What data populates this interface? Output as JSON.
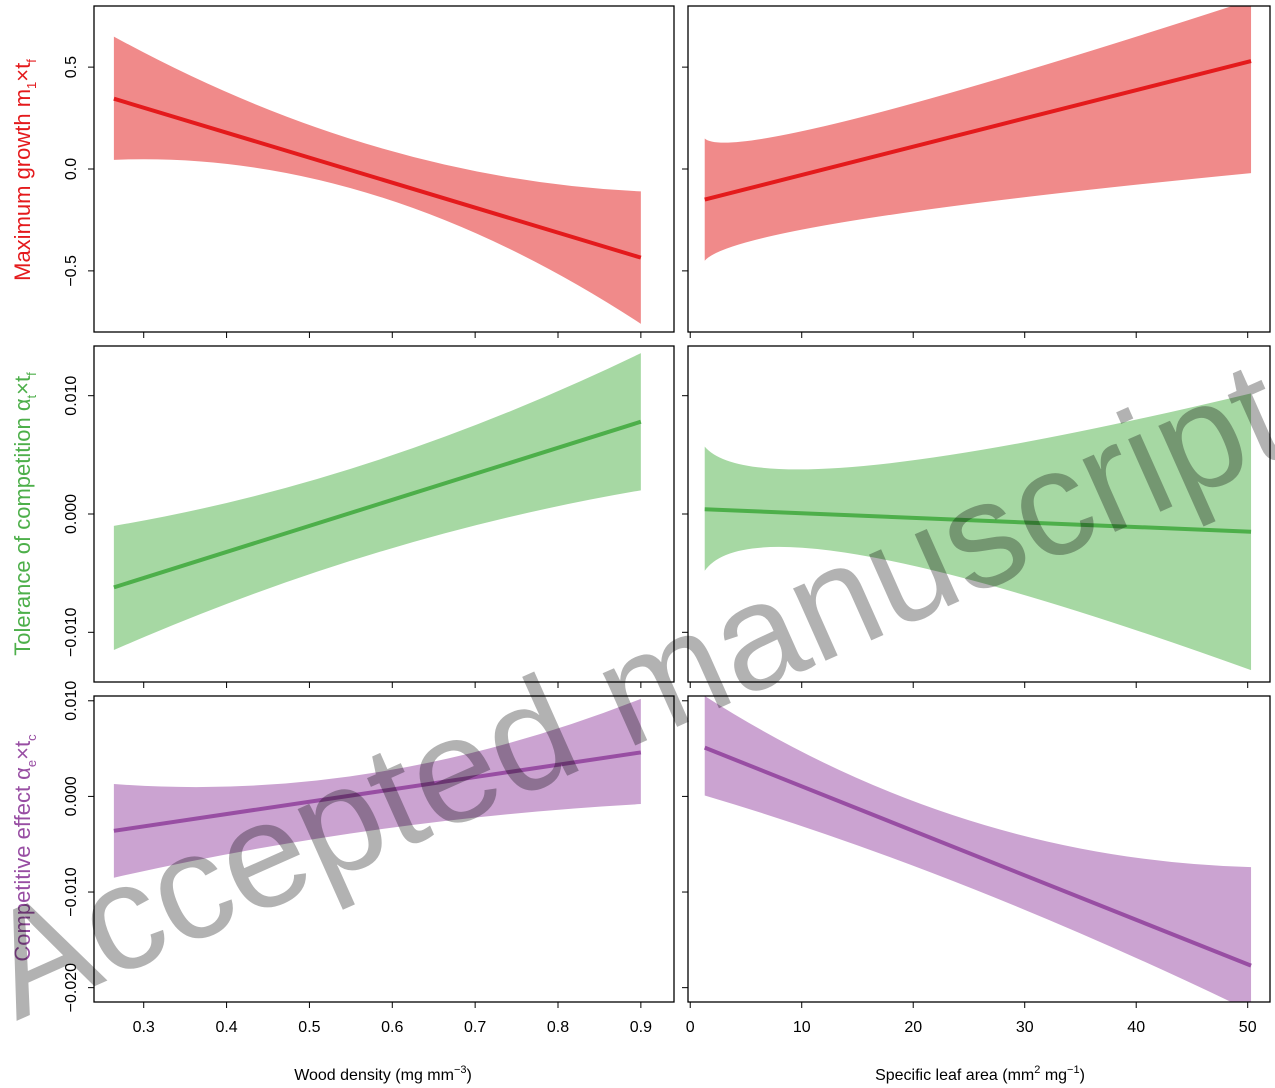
{
  "watermark": "Accepted manuscript",
  "colors": {
    "growth_line": "#E41A1C",
    "growth_band": "#F08A8A",
    "tolerance_line": "#4DAF4A",
    "tolerance_band": "#A6D8A3",
    "effect_line": "#984EA3",
    "effect_band": "#CBA3D1"
  },
  "rows": [
    {
      "title_main": "Maximum growth m",
      "title_sub1": "1",
      "title_mid": "×t",
      "title_sub2": "f"
    },
    {
      "title_main": "Tolerance of competition α",
      "title_sub1": "t",
      "title_mid": "×t",
      "title_sub2": "f"
    },
    {
      "title_main": "Competitive effect α",
      "title_sub1": "e",
      "title_mid": "×t",
      "title_sub2": "c"
    }
  ],
  "columns": [
    {
      "xlabel_pre": "Wood density (mg mm",
      "xlabel_sup": "−3",
      "xlabel_post": ")"
    },
    {
      "xlabel_pre": "Specific leaf area (mm",
      "xlabel_sup": "2",
      "xlabel_mid": " mg",
      "xlabel_sup2": "−1",
      "xlabel_post": ")"
    }
  ],
  "chart_data": [
    {
      "type": "line",
      "row": 0,
      "col": 0,
      "xlim": [
        0.24,
        0.94
      ],
      "ylim": [
        -0.8,
        0.8
      ],
      "xticks": [
        "0.3",
        "0.4",
        "0.5",
        "0.6",
        "0.7",
        "0.8",
        "0.9"
      ],
      "yticks": [
        "-0.5",
        "0.0",
        "0.5"
      ],
      "x": [
        0.264,
        0.9
      ],
      "y": [
        0.345,
        -0.435
      ],
      "band": {
        "x": [
          0.264,
          0.58,
          0.9
        ],
        "lower": [
          0.045,
          -0.13,
          -0.76
        ],
        "upper": [
          0.65,
          0.11,
          -0.11
        ]
      }
    },
    {
      "type": "line",
      "row": 0,
      "col": 1,
      "xlim": [
        -0.2,
        52
      ],
      "ylim": [
        -0.8,
        0.8
      ],
      "xticks": [
        "0",
        "10",
        "20",
        "30",
        "40",
        "50"
      ],
      "yticks": [
        "-0.5",
        "0.0",
        "0.5"
      ],
      "x": [
        1.3,
        50.3
      ],
      "y": [
        -0.15,
        0.53
      ],
      "band": {
        "x": [
          1.3,
          15,
          50.3
        ],
        "lower": [
          -0.45,
          -0.25,
          -0.02
        ],
        "upper": [
          0.15,
          0.25,
          0.83
        ]
      }
    },
    {
      "type": "line",
      "row": 1,
      "col": 0,
      "xlim": [
        0.24,
        0.94
      ],
      "ylim": [
        -0.0142,
        0.0142
      ],
      "xticks": [
        "0.3",
        "0.4",
        "0.5",
        "0.6",
        "0.7",
        "0.8",
        "0.9"
      ],
      "yticks": [
        "-0.010",
        "0.000",
        "0.010"
      ],
      "x": [
        0.264,
        0.9
      ],
      "y": [
        -0.0062,
        0.0078
      ],
      "band": {
        "x": [
          0.264,
          0.58,
          0.9
        ],
        "lower": [
          -0.0115,
          -0.0033,
          0.002
        ],
        "upper": [
          -0.001,
          0.0045,
          0.0136
        ]
      }
    },
    {
      "type": "line",
      "row": 1,
      "col": 1,
      "xlim": [
        -0.2,
        52
      ],
      "ylim": [
        -0.0142,
        0.0142
      ],
      "xticks": [
        "0",
        "10",
        "20",
        "30",
        "40",
        "50"
      ],
      "yticks": [
        "-0.010",
        "0.000",
        "0.010"
      ],
      "x": [
        1.3,
        50.3
      ],
      "y": [
        0.0004,
        -0.0015
      ],
      "band": {
        "x": [
          1.3,
          16,
          50.3
        ],
        "lower": [
          -0.0048,
          -0.0036,
          -0.0132
        ],
        "upper": [
          0.0057,
          0.0041,
          0.0102
        ]
      }
    },
    {
      "type": "line",
      "row": 2,
      "col": 0,
      "xlim": [
        0.24,
        0.94
      ],
      "ylim": [
        -0.0215,
        0.0105
      ],
      "xticks": [
        "0.3",
        "0.4",
        "0.5",
        "0.6",
        "0.7",
        "0.8",
        "0.9"
      ],
      "yticks": [
        "-0.020",
        "-0.010",
        "0.000",
        "0.010"
      ],
      "x": [
        0.264,
        0.9
      ],
      "y": [
        -0.0036,
        0.0046
      ],
      "band": {
        "x": [
          0.264,
          0.58,
          0.9
        ],
        "lower": [
          -0.0085,
          -0.0035,
          -0.0008
        ],
        "upper": [
          0.0013,
          0.0025,
          0.0102
        ]
      }
    },
    {
      "type": "line",
      "row": 2,
      "col": 1,
      "xlim": [
        -0.2,
        52
      ],
      "ylim": [
        -0.0215,
        0.0105
      ],
      "xticks": [
        "0",
        "10",
        "20",
        "30",
        "40",
        "50"
      ],
      "yticks": [
        "-0.020",
        "-0.010",
        "0.000",
        "0.010"
      ],
      "x": [
        1.3,
        50.3
      ],
      "y": [
        0.0051,
        -0.0177
      ],
      "band": {
        "x": [
          1.3,
          25,
          50.3
        ],
        "lower": [
          0.0001,
          -0.0095,
          -0.0225
        ],
        "upper": [
          0.0105,
          -0.0025,
          -0.0074
        ]
      }
    }
  ]
}
